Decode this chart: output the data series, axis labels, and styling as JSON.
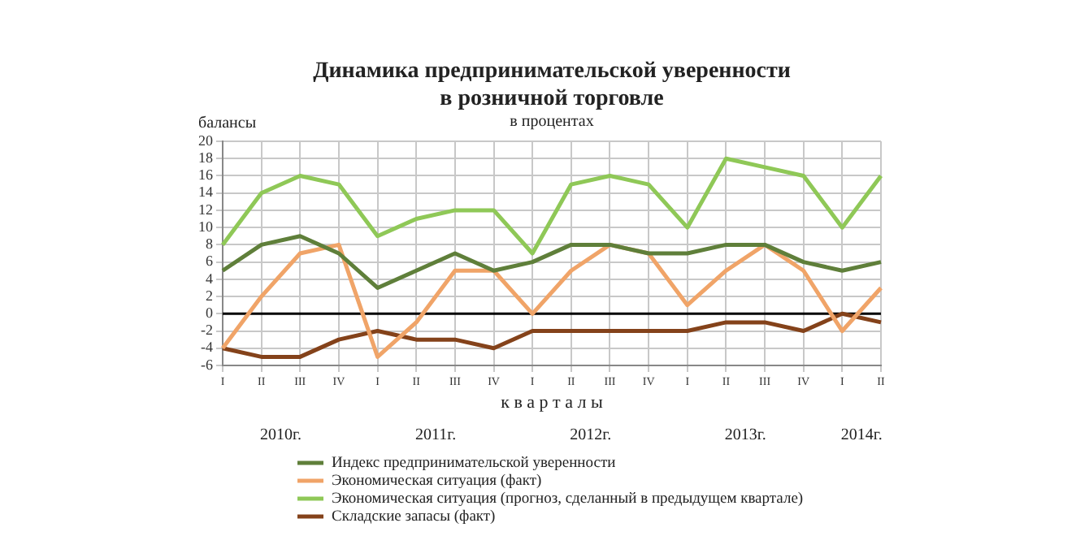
{
  "chart_data": {
    "type": "line",
    "title": "Динамика предпринимательской уверенности в розничной торговле",
    "subtitle": "в процентах",
    "ylabel": "балансы",
    "xlabel": "к в а р т а л ы",
    "categories": [
      "I",
      "II",
      "III",
      "IV",
      "I",
      "II",
      "III",
      "IV",
      "I",
      "II",
      "III",
      "IV",
      "I",
      "II",
      "III",
      "IV",
      "I",
      "II"
    ],
    "series": [
      {
        "name": "Индекс предпринимательской уверенности",
        "color": "#5f7f3a",
        "values": [
          5,
          8,
          9,
          7,
          3,
          5,
          7,
          5,
          6,
          8,
          8,
          7,
          7,
          8,
          8,
          6,
          5,
          6
        ]
      },
      {
        "name": "Экономическая ситуация (факт)",
        "color": "#f0a468",
        "values": [
          -4,
          2,
          7,
          8,
          -5,
          -1,
          5,
          5,
          0,
          5,
          8,
          7,
          1,
          5,
          8,
          5,
          -2,
          3
        ]
      },
      {
        "name": "Экономическая ситуация (прогноз, сделанный в предыдущем квартале)",
        "color": "#8fc857",
        "values": [
          8,
          14,
          16,
          15,
          9,
          11,
          12,
          12,
          7,
          15,
          16,
          15,
          10,
          18,
          17,
          16,
          10,
          16
        ]
      },
      {
        "name": "Складские запасы (факт)",
        "color": "#84421a",
        "values": [
          -4,
          -5,
          -5,
          -3,
          -2,
          -3,
          -3,
          -4,
          -2,
          -2,
          -2,
          -2,
          -2,
          -1,
          -1,
          -2,
          0,
          -1
        ]
      }
    ],
    "ylim": [
      -6,
      20
    ],
    "yticks": [
      -6,
      -4,
      -2,
      0,
      2,
      4,
      6,
      8,
      10,
      12,
      14,
      16,
      18,
      20
    ],
    "ref_lines": [
      {
        "axis": "y",
        "value": 0,
        "color": "#000000"
      }
    ],
    "annotations": [
      "2010г.",
      "2011г.",
      "2012г.",
      "2013г.",
      "2014г."
    ],
    "grid": true,
    "legend": "bottom",
    "marker": "none",
    "line_style": "solid"
  }
}
